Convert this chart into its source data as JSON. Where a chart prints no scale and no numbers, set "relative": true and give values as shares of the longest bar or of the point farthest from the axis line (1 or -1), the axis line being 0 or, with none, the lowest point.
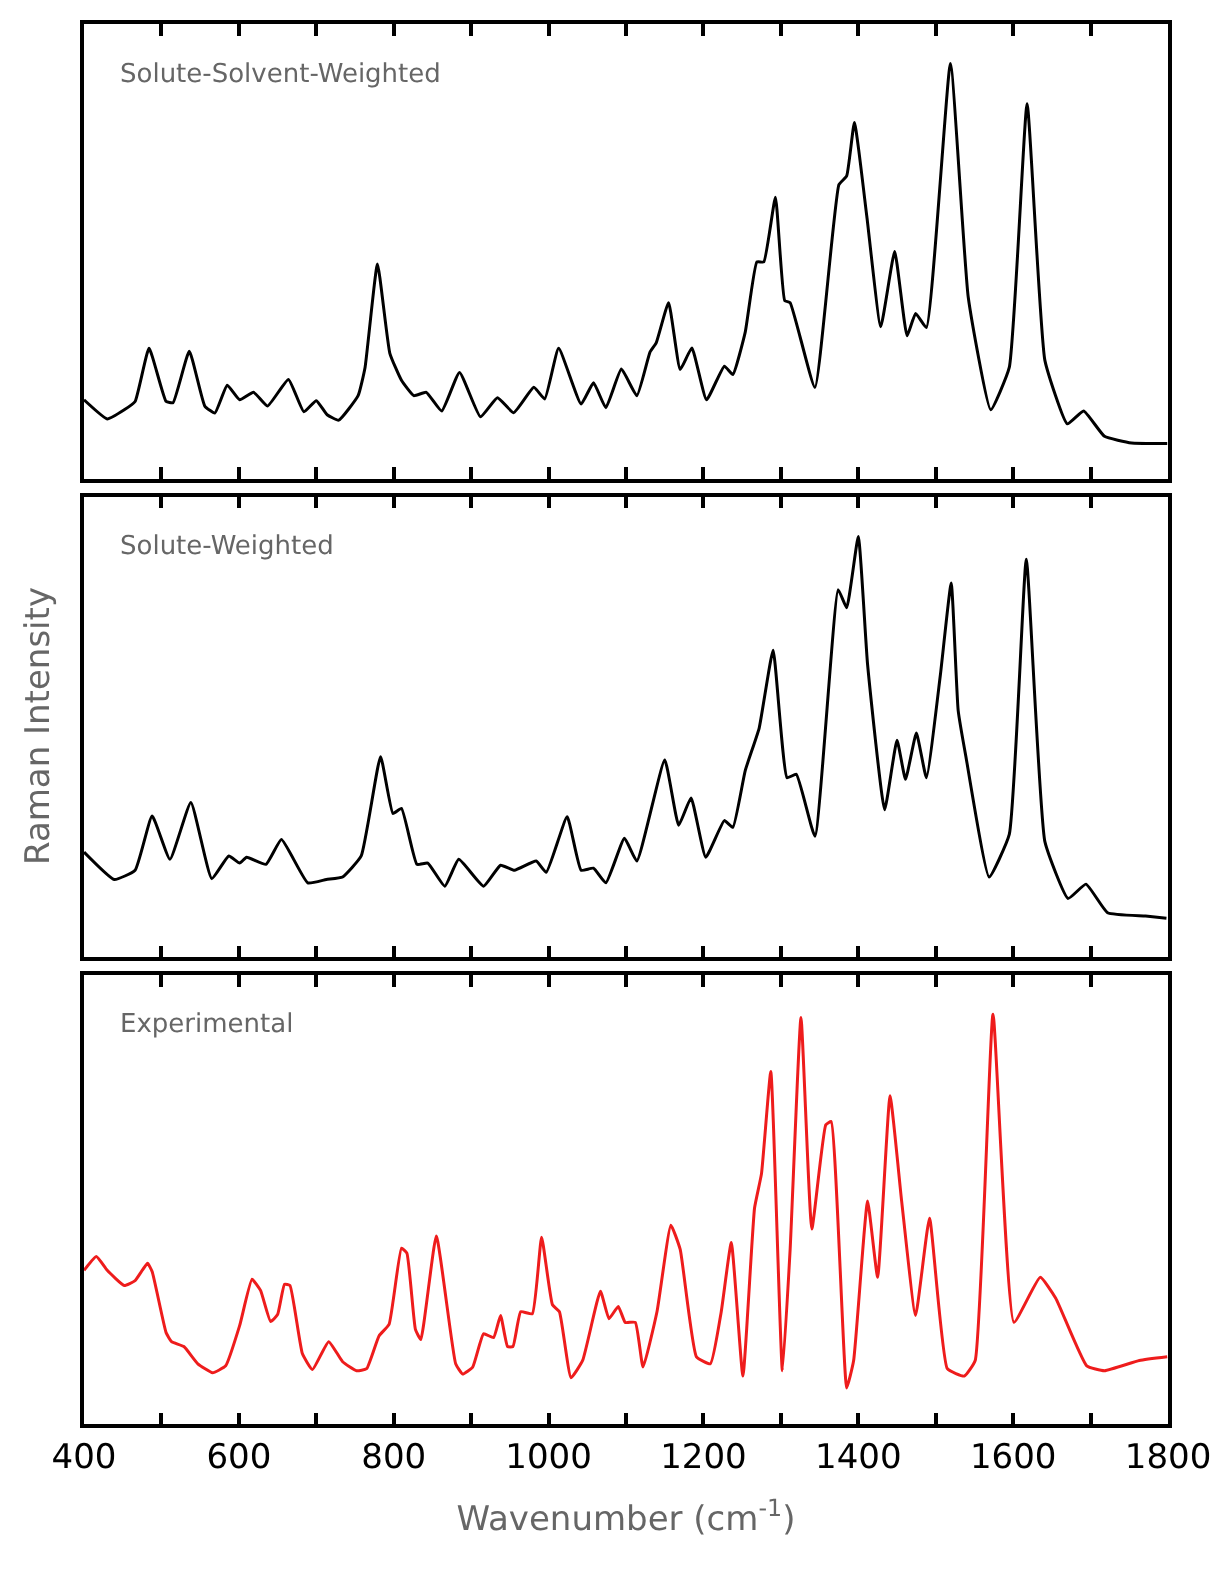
{
  "chart_data": [
    {
      "type": "line",
      "title": "Solute-Solvent-Weighted",
      "relative": true,
      "tick_labels": false,
      "marker": "none",
      "line_style": "solid",
      "xlim": [
        400,
        1800
      ],
      "xticks": [
        400,
        {
          "value": 500,
          "label": null
        },
        600,
        {
          "value": 700,
          "label": null
        },
        800,
        {
          "value": 900,
          "label": null
        },
        1000,
        {
          "value": 1100,
          "label": null
        },
        1200,
        {
          "value": 1300,
          "label": null
        },
        1400,
        {
          "value": 1500,
          "label": null
        },
        1600,
        {
          "value": 1700,
          "label": null
        },
        1800
      ],
      "series": [
        {
          "color": "#000000",
          "x": [
            400,
            430,
            452,
            466,
            484,
            506,
            515,
            536,
            556,
            569,
            585,
            601,
            619,
            637,
            664,
            684,
            700,
            714,
            729,
            754,
            763,
            779,
            795,
            810,
            826,
            842,
            862,
            885,
            912,
            934,
            955,
            981,
            995,
            1013,
            1042,
            1058,
            1074,
            1094,
            1114,
            1131,
            1139,
            1155,
            1170,
            1185,
            1204,
            1227,
            1238,
            1254,
            1269,
            1278,
            1293,
            1305,
            1312,
            1344,
            1375,
            1385,
            1395,
            1411,
            1429,
            1447,
            1463,
            1474,
            1488,
            1519,
            1542,
            1571,
            1595,
            1618,
            1641,
            1670,
            1691,
            1718,
            1753,
            1799
          ],
          "values": [
            0.19,
            0.144,
            0.166,
            0.186,
            0.314,
            0.186,
            0.183,
            0.307,
            0.175,
            0.158,
            0.225,
            0.19,
            0.208,
            0.175,
            0.239,
            0.161,
            0.188,
            0.154,
            0.141,
            0.2,
            0.268,
            0.517,
            0.302,
            0.237,
            0.2,
            0.208,
            0.163,
            0.256,
            0.149,
            0.195,
            0.159,
            0.22,
            0.192,
            0.314,
            0.18,
            0.231,
            0.171,
            0.264,
            0.2,
            0.305,
            0.327,
            0.424,
            0.263,
            0.315,
            0.19,
            0.271,
            0.251,
            0.353,
            0.522,
            0.522,
            0.678,
            0.429,
            0.424,
            0.22,
            0.708,
            0.729,
            0.858,
            0.632,
            0.366,
            0.547,
            0.344,
            0.398,
            0.364,
            1.0,
            0.437,
            0.166,
            0.268,
            0.903,
            0.285,
            0.132,
            0.163,
            0.102,
            0.086,
            0.085
          ]
        }
      ]
    },
    {
      "type": "line",
      "title": "Solute-Weighted",
      "ylabel": "Raman Intensity",
      "relative": true,
      "tick_labels": false,
      "marker": "none",
      "line_style": "solid",
      "xlim": [
        400,
        1800
      ],
      "xticks": [
        400,
        {
          "value": 500,
          "label": null
        },
        600,
        {
          "value": 700,
          "label": null
        },
        800,
        {
          "value": 900,
          "label": null
        },
        1000,
        {
          "value": 1100,
          "label": null
        },
        1200,
        {
          "value": 1300,
          "label": null
        },
        1400,
        {
          "value": 1500,
          "label": null
        },
        1600,
        {
          "value": 1700,
          "label": null
        },
        1800
      ],
      "series": [
        {
          "color": "#000000",
          "x": [
            400,
            439,
            466,
            488,
            511,
            538,
            565,
            587,
            601,
            610,
            635,
            655,
            689,
            713,
            734,
            758,
            783,
            799,
            810,
            830,
            844,
            866,
            884,
            916,
            938,
            956,
            984,
            997,
            1024,
            1042,
            1058,
            1074,
            1098,
            1114,
            1150,
            1168,
            1184,
            1203,
            1227,
            1238,
            1254,
            1272,
            1290,
            1308,
            1320,
            1344,
            1374,
            1385,
            1400,
            1412,
            1434,
            1450,
            1461,
            1475,
            1488,
            1506,
            1520,
            1529,
            1539,
            1569,
            1595,
            1617,
            1641,
            1671,
            1694,
            1722,
            1771,
            1798
          ],
          "values": [
            0.25,
            0.185,
            0.207,
            0.336,
            0.233,
            0.368,
            0.187,
            0.241,
            0.224,
            0.238,
            0.221,
            0.28,
            0.177,
            0.185,
            0.191,
            0.241,
            0.477,
            0.342,
            0.354,
            0.221,
            0.224,
            0.169,
            0.233,
            0.169,
            0.219,
            0.207,
            0.229,
            0.202,
            0.334,
            0.207,
            0.212,
            0.177,
            0.283,
            0.229,
            0.469,
            0.314,
            0.379,
            0.238,
            0.325,
            0.309,
            0.444,
            0.545,
            0.73,
            0.427,
            0.435,
            0.288,
            0.874,
            0.831,
            1.0,
            0.696,
            0.351,
            0.516,
            0.423,
            0.533,
            0.427,
            0.671,
            0.89,
            0.587,
            0.477,
            0.191,
            0.292,
            0.946,
            0.275,
            0.14,
            0.174,
            0.106,
            0.098,
            0.093
          ]
        }
      ]
    },
    {
      "type": "line",
      "title": "Experimental",
      "xlabel": "Wavenumber (cm$^{-1}$)",
      "relative": true,
      "tick_labels": "x",
      "marker": "none",
      "line_style": "solid",
      "xlim": [
        400,
        1800
      ],
      "xticks": [
        400,
        {
          "value": 500,
          "label": null
        },
        600,
        {
          "value": 700,
          "label": null
        },
        800,
        {
          "value": 900,
          "label": null
        },
        1000,
        {
          "value": 1100,
          "label": null
        },
        1200,
        {
          "value": 1300,
          "label": null
        },
        1400,
        {
          "value": 1500,
          "label": null
        },
        1600,
        {
          "value": 1700,
          "label": null
        },
        1800
      ],
      "series": [
        {
          "color": "#ee1c1c",
          "x": [
            400,
            416,
            430,
            452,
            466,
            482,
            488,
            506,
            513,
            529,
            547,
            566,
            583,
            601,
            617,
            628,
            641,
            650,
            659,
            666,
            682,
            695,
            716,
            734,
            752,
            765,
            781,
            794,
            810,
            817,
            828,
            835,
            855,
            880,
            889,
            902,
            916,
            929,
            938,
            947,
            954,
            964,
            979,
            991,
            1005,
            1014,
            1029,
            1044,
            1067,
            1078,
            1090,
            1099,
            1112,
            1122,
            1140,
            1158,
            1170,
            1191,
            1209,
            1223,
            1236,
            1251,
            1266,
            1275,
            1287,
            1302,
            1312,
            1326,
            1340,
            1358,
            1365,
            1385,
            1394,
            1412,
            1425,
            1441,
            1456,
            1474,
            1492,
            1515,
            1537,
            1551,
            1574,
            1601,
            1635,
            1655,
            1695,
            1718,
            1763,
            1799
          ],
          "values": [
            0.375,
            0.409,
            0.375,
            0.338,
            0.35,
            0.392,
            0.372,
            0.223,
            0.201,
            0.189,
            0.147,
            0.125,
            0.142,
            0.24,
            0.353,
            0.326,
            0.25,
            0.267,
            0.341,
            0.338,
            0.172,
            0.133,
            0.201,
            0.152,
            0.13,
            0.135,
            0.215,
            0.243,
            0.429,
            0.417,
            0.231,
            0.206,
            0.459,
            0.147,
            0.122,
            0.139,
            0.22,
            0.211,
            0.265,
            0.189,
            0.189,
            0.274,
            0.269,
            0.456,
            0.291,
            0.274,
            0.113,
            0.155,
            0.324,
            0.257,
            0.287,
            0.248,
            0.248,
            0.139,
            0.274,
            0.485,
            0.426,
            0.164,
            0.147,
            0.274,
            0.443,
            0.117,
            0.527,
            0.611,
            0.86,
            0.13,
            0.426,
            0.992,
            0.476,
            0.73,
            0.738,
            0.088,
            0.155,
            0.544,
            0.358,
            0.801,
            0.544,
            0.265,
            0.502,
            0.135,
            0.117,
            0.155,
            1.0,
            0.248,
            0.358,
            0.307,
            0.142,
            0.13,
            0.155,
            0.164
          ]
        }
      ]
    }
  ]
}
